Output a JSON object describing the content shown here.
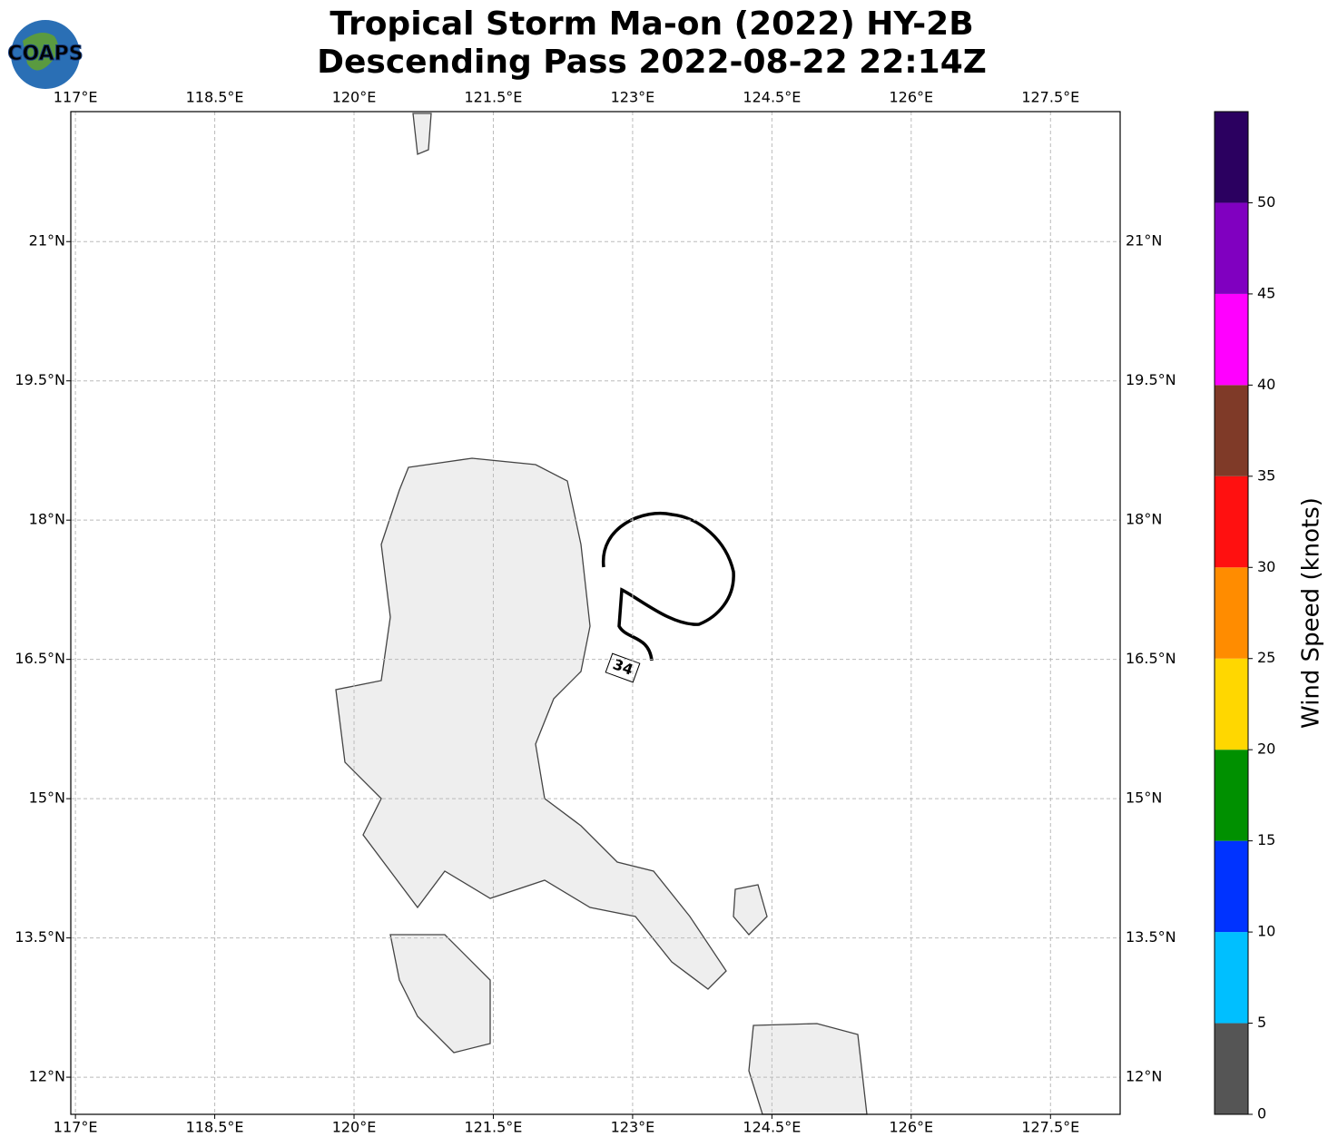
{
  "chart_data": {
    "type": "map",
    "title": "Tropical Storm Ma-on (2022) HY-2B",
    "subtitle": "Descending Pass 2022-08-22 22:14Z",
    "logo": "COAPS",
    "xlim": [
      116.95,
      128.25
    ],
    "ylim": [
      11.6,
      22.4
    ],
    "xticks": [
      {
        "value": 117,
        "label": "117°E"
      },
      {
        "value": 118.5,
        "label": "118.5°E"
      },
      {
        "value": 120,
        "label": "120°E"
      },
      {
        "value": 121.5,
        "label": "121.5°E"
      },
      {
        "value": 123,
        "label": "123°E"
      },
      {
        "value": 124.5,
        "label": "124.5°E"
      },
      {
        "value": 126,
        "label": "126°E"
      },
      {
        "value": 127.5,
        "label": "127.5°E"
      }
    ],
    "yticks": [
      {
        "value": 12,
        "label": "12°N"
      },
      {
        "value": 13.5,
        "label": "13.5°N"
      },
      {
        "value": 15,
        "label": "15°N"
      },
      {
        "value": 16.5,
        "label": "16.5°N"
      },
      {
        "value": 18,
        "label": "18°N"
      },
      {
        "value": 19.5,
        "label": "19.5°N"
      },
      {
        "value": 21,
        "label": "21°N"
      }
    ],
    "grid": true,
    "annotations": [
      "34"
    ],
    "colorbar": {
      "label": "Wind Speed (knots)",
      "lim": [
        0,
        55
      ],
      "bounds": [
        0,
        5,
        10,
        15,
        20,
        25,
        30,
        35,
        40,
        45,
        50,
        55
      ],
      "colors": [
        "#555555",
        "#00bfff",
        "#0033ff",
        "#009000",
        "#ffd700",
        "#ff8c00",
        "#ff1010",
        "#7f3a28",
        "#ff00ff",
        "#8000c0",
        "#2b0060"
      ],
      "ticks": [
        0,
        5,
        10,
        15,
        20,
        25,
        30,
        35,
        40,
        45,
        50
      ]
    }
  }
}
